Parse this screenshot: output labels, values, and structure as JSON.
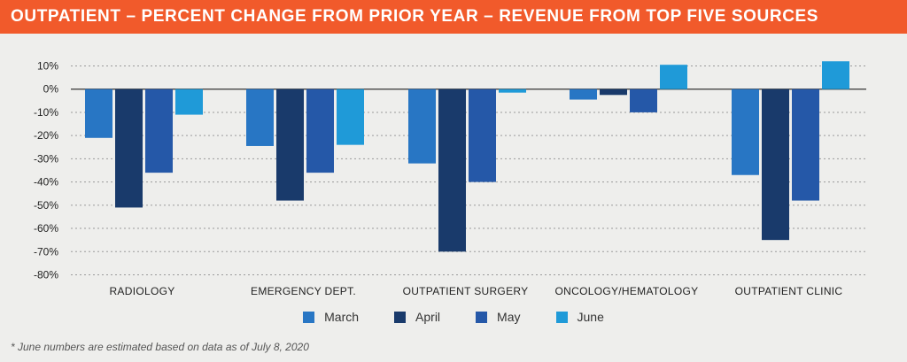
{
  "title": "OUTPATIENT – PERCENT CHANGE FROM PRIOR YEAR – REVENUE FROM TOP FIVE SOURCES",
  "footnote": "* June numbers are estimated based on data as of July 8, 2020",
  "colors": {
    "title_bg": "#f15a2b",
    "March": "#2876c4",
    "April": "#193a6b",
    "May": "#2558a8",
    "June": "#1f9ad8"
  },
  "chart_data": {
    "type": "bar",
    "categories": [
      "RADIOLOGY",
      "EMERGENCY DEPT.",
      "OUTPATIENT SURGERY",
      "ONCOLOGY/HEMATOLOGY",
      "OUTPATIENT CLINIC"
    ],
    "series": [
      {
        "name": "March",
        "values": [
          -21,
          -24.5,
          -32,
          -4.5,
          -37
        ]
      },
      {
        "name": "April",
        "values": [
          -51,
          -48,
          -70,
          -2.5,
          -65
        ]
      },
      {
        "name": "May",
        "values": [
          -36,
          -36,
          -40,
          -10,
          -48
        ]
      },
      {
        "name": "June",
        "values": [
          -11,
          -24,
          -1.5,
          10.5,
          12
        ]
      }
    ],
    "ylim": [
      -80,
      10
    ],
    "yticks": [
      "10%",
      "0%",
      "-10%",
      "-20%",
      "-30%",
      "-40%",
      "-50%",
      "-60%",
      "-70%",
      "-80%"
    ],
    "ytick_values": [
      10,
      0,
      -10,
      -20,
      -30,
      -40,
      -50,
      -60,
      -70,
      -80
    ],
    "grid": true,
    "legend_position": "bottom-center"
  }
}
